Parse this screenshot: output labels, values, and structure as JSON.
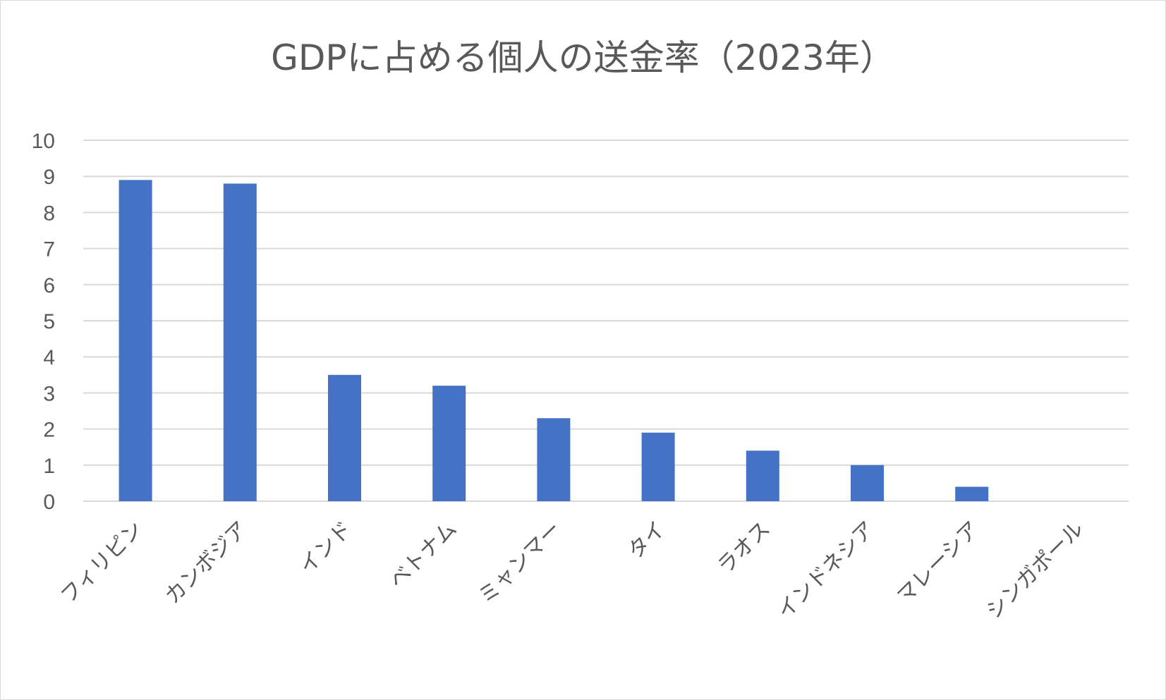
{
  "chart_data": {
    "type": "bar",
    "title": "GDPに占める個人の送金率（2023年）",
    "xlabel": "",
    "ylabel": "",
    "categories": [
      "フィリピン",
      "カンボジア",
      "インド",
      "ベトナム",
      "ミャンマー",
      "タイ",
      "ラオス",
      "インドネシア",
      "マレーシア",
      "シンガポール"
    ],
    "values": [
      8.9,
      8.8,
      3.5,
      3.2,
      2.3,
      1.9,
      1.4,
      1.0,
      0.4,
      0
    ],
    "ylim": [
      0,
      10
    ],
    "yticks": [
      0,
      1,
      2,
      3,
      4,
      5,
      6,
      7,
      8,
      9,
      10
    ],
    "grid": true,
    "legend": "none",
    "colors": {
      "bar": "#4472c4",
      "grid": "#d9d9d9",
      "text": "#595959"
    }
  }
}
